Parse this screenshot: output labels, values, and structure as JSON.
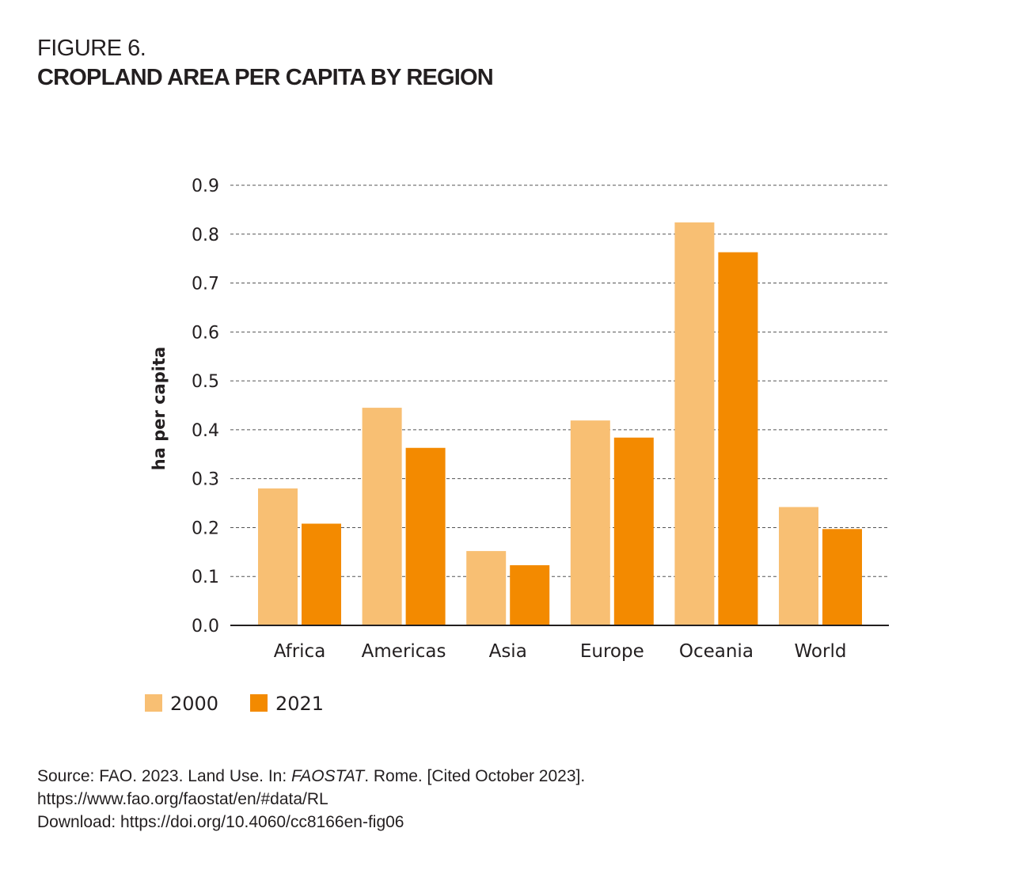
{
  "figure": {
    "label": "FIGURE 6.",
    "title": "CROPLAND AREA PER CAPITA BY REGION"
  },
  "source": {
    "line1_prefix": "Source: FAO. 2023. Land Use. In: ",
    "line1_italic": "FAOSTAT",
    "line1_suffix": ". Rome. [Cited October 2023].",
    "line2": "https://www.fao.org/faostat/en/#data/RL",
    "line3": "Download: https://doi.org/10.4060/cc8166en-fig06"
  },
  "chart_data": {
    "type": "bar",
    "title": "CROPLAND AREA PER CAPITA BY REGION",
    "xlabel": "",
    "ylabel": "ha per capita",
    "ylim": [
      0,
      0.9
    ],
    "yticks": [
      "0.0",
      "0.1",
      "0.2",
      "0.3",
      "0.4",
      "0.5",
      "0.6",
      "0.7",
      "0.8",
      "0.9"
    ],
    "grid": "horizontal dashed",
    "legend_position": "bottom-left",
    "categories": [
      "Africa",
      "Americas",
      "Asia",
      "Europe",
      "Oceania",
      "World"
    ],
    "series": [
      {
        "name": "2000",
        "color": "#f8bf73",
        "values": [
          0.28,
          0.445,
          0.152,
          0.419,
          0.824,
          0.242
        ]
      },
      {
        "name": "2021",
        "color": "#f38a00",
        "values": [
          0.208,
          0.363,
          0.123,
          0.384,
          0.763,
          0.197
        ]
      }
    ]
  }
}
